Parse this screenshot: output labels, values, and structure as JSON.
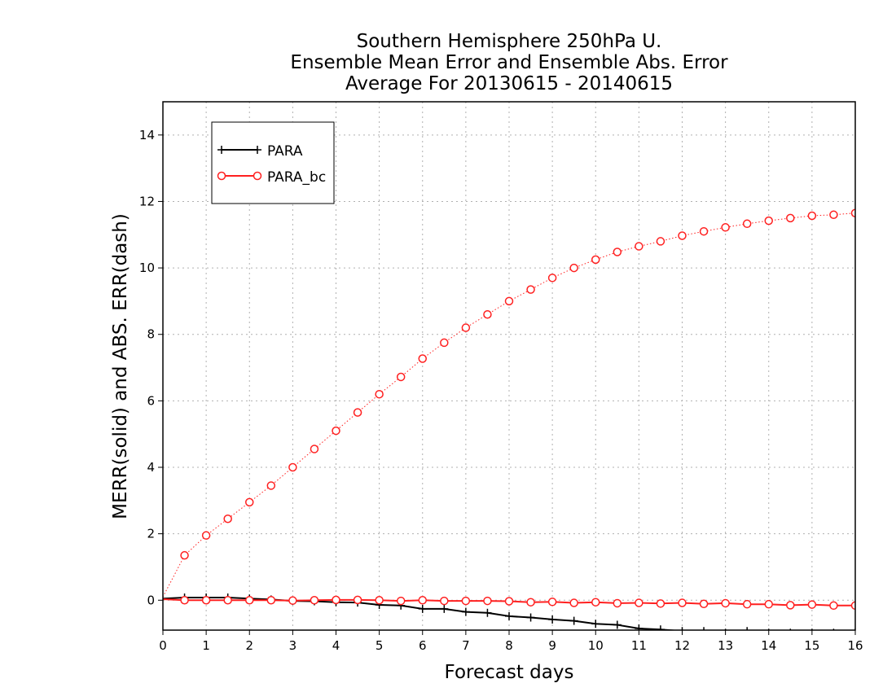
{
  "chart_data": {
    "type": "line",
    "title_lines": [
      "Southern Hemisphere 250hPa U.",
      "Ensemble Mean Error and Ensemble Abs. Error",
      "Average For 20130615 - 20140615"
    ],
    "xlabel": "Forecast days",
    "ylabel": "MERR(solid) and ABS. ERR(dash)",
    "xlim": [
      0,
      16
    ],
    "ylim": [
      -0.9,
      15
    ],
    "xticks": [
      0,
      1,
      2,
      3,
      4,
      5,
      6,
      7,
      8,
      9,
      10,
      11,
      12,
      13,
      14,
      15,
      16
    ],
    "yticks": [
      0,
      2,
      4,
      6,
      8,
      10,
      12,
      14
    ],
    "grid": true,
    "legend_position": "top-left",
    "series": [
      {
        "name": "PARA",
        "color": "#000000",
        "marker": "plus",
        "style": "solid",
        "x": [
          0,
          0.5,
          1,
          1.5,
          2,
          2.5,
          3,
          3.5,
          4,
          4.5,
          5,
          5.5,
          6,
          6.5,
          7,
          7.5,
          8,
          8.5,
          9,
          9.5,
          10,
          10.5,
          11,
          11.5,
          12,
          12.5,
          13,
          13.5,
          14,
          14.5,
          15,
          15.5,
          16
        ],
        "values": [
          0.05,
          0.08,
          0.08,
          0.08,
          0.05,
          0.02,
          -0.02,
          -0.03,
          -0.06,
          -0.07,
          -0.14,
          -0.16,
          -0.26,
          -0.26,
          -0.35,
          -0.38,
          -0.48,
          -0.52,
          -0.58,
          -0.62,
          -0.71,
          -0.74,
          -0.85,
          -0.88,
          -0.93,
          -0.93,
          -0.98,
          -0.93,
          -0.98,
          -0.98,
          -0.98,
          -0.98,
          -0.98
        ]
      },
      {
        "name": "PARA_bc",
        "color": "#ff2020",
        "marker": "circle",
        "style": "solid",
        "x": [
          0,
          0.5,
          1,
          1.5,
          2,
          2.5,
          3,
          3.5,
          4,
          4.5,
          5,
          5.5,
          6,
          6.5,
          7,
          7.5,
          8,
          8.5,
          9,
          9.5,
          10,
          10.5,
          11,
          11.5,
          12,
          12.5,
          13,
          13.5,
          14,
          14.5,
          15,
          15.5,
          16
        ],
        "values": [
          0.03,
          0.0,
          0.0,
          0.0,
          0.0,
          0.0,
          -0.01,
          0.0,
          0.01,
          0.01,
          0.0,
          -0.02,
          0.0,
          -0.02,
          -0.02,
          -0.02,
          -0.03,
          -0.06,
          -0.05,
          -0.08,
          -0.06,
          -0.09,
          -0.08,
          -0.1,
          -0.08,
          -0.11,
          -0.09,
          -0.12,
          -0.12,
          -0.15,
          -0.13,
          -0.16,
          -0.16
        ]
      },
      {
        "name": "PARA_bc",
        "color": "#ff2020",
        "marker": "circle",
        "style": "dotted",
        "x": [
          0,
          0.5,
          1,
          1.5,
          2,
          2.5,
          3,
          3.5,
          4,
          4.5,
          5,
          5.5,
          6,
          6.5,
          7,
          7.5,
          8,
          8.5,
          9,
          9.5,
          10,
          10.5,
          11,
          11.5,
          12,
          12.5,
          13,
          13.5,
          14,
          14.5,
          15,
          15.5,
          16
        ],
        "values": [
          0.1,
          1.35,
          1.95,
          2.45,
          2.95,
          3.45,
          4.0,
          4.55,
          5.1,
          5.65,
          6.2,
          6.72,
          7.27,
          7.75,
          8.2,
          8.6,
          9.0,
          9.35,
          9.7,
          10.0,
          10.25,
          10.48,
          10.65,
          10.8,
          10.97,
          11.1,
          11.22,
          11.33,
          11.42,
          11.5,
          11.57,
          11.6,
          11.65
        ]
      }
    ]
  }
}
